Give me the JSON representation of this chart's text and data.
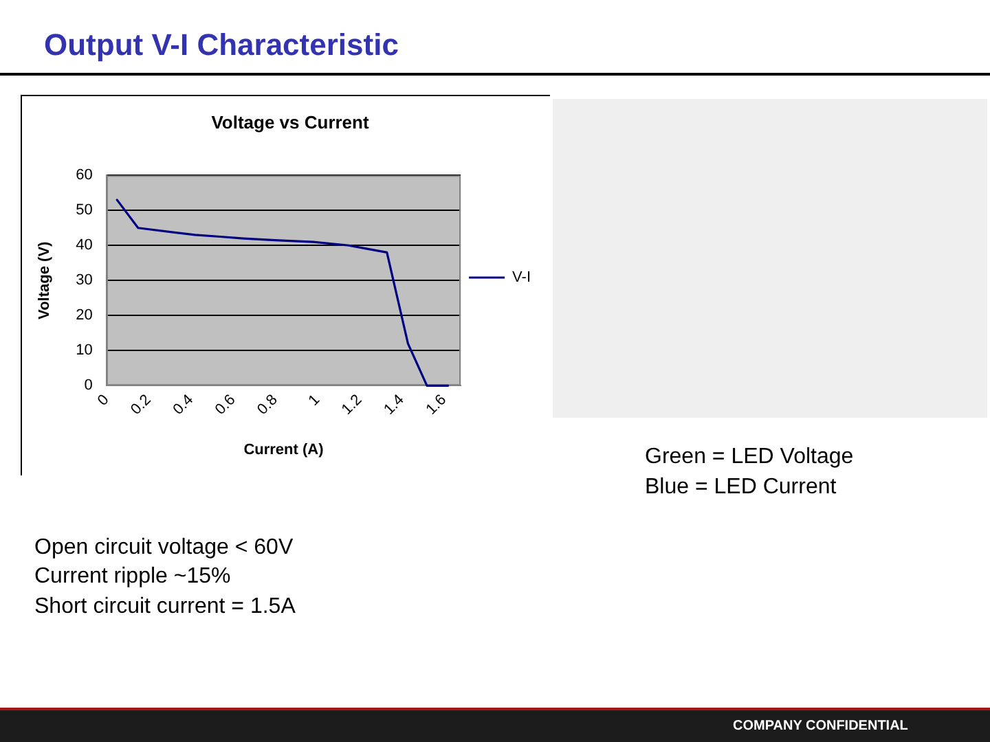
{
  "chart_data": {
    "type": "line",
    "title": "Output V-I Characteristic",
    "subtitle": "Voltage vs Current",
    "xlabel": "Current (A)",
    "ylabel": "Voltage (V)",
    "x": [
      0.05,
      0.15,
      0.42,
      0.54,
      0.65,
      0.8,
      0.98,
      1.15,
      1.24,
      1.33,
      1.43,
      1.52,
      1.62
    ],
    "series": [
      {
        "name": "V-I",
        "color": "#000080",
        "values": [
          53,
          45,
          43,
          42.5,
          42,
          41.5,
          41,
          40,
          39,
          38,
          12,
          0,
          0
        ]
      }
    ],
    "xlim": [
      0,
      1.68
    ],
    "xticks": [
      0,
      0.2,
      0.4,
      0.6,
      0.8,
      1,
      1.2,
      1.4,
      1.6
    ],
    "ylim": [
      0,
      60
    ],
    "yticks": [
      0,
      10,
      20,
      30,
      40,
      50,
      60
    ],
    "grid": "y",
    "legend": "right",
    "marker": "none",
    "line_style": "solid",
    "annotations": [
      "Green = LED Voltage",
      "Blue = LED Current",
      "Open circuit voltage < 60V",
      "Current ripple ~15%",
      "Short circuit current = 1.5A",
      "COMPANY CONFIDENTIAL"
    ]
  }
}
